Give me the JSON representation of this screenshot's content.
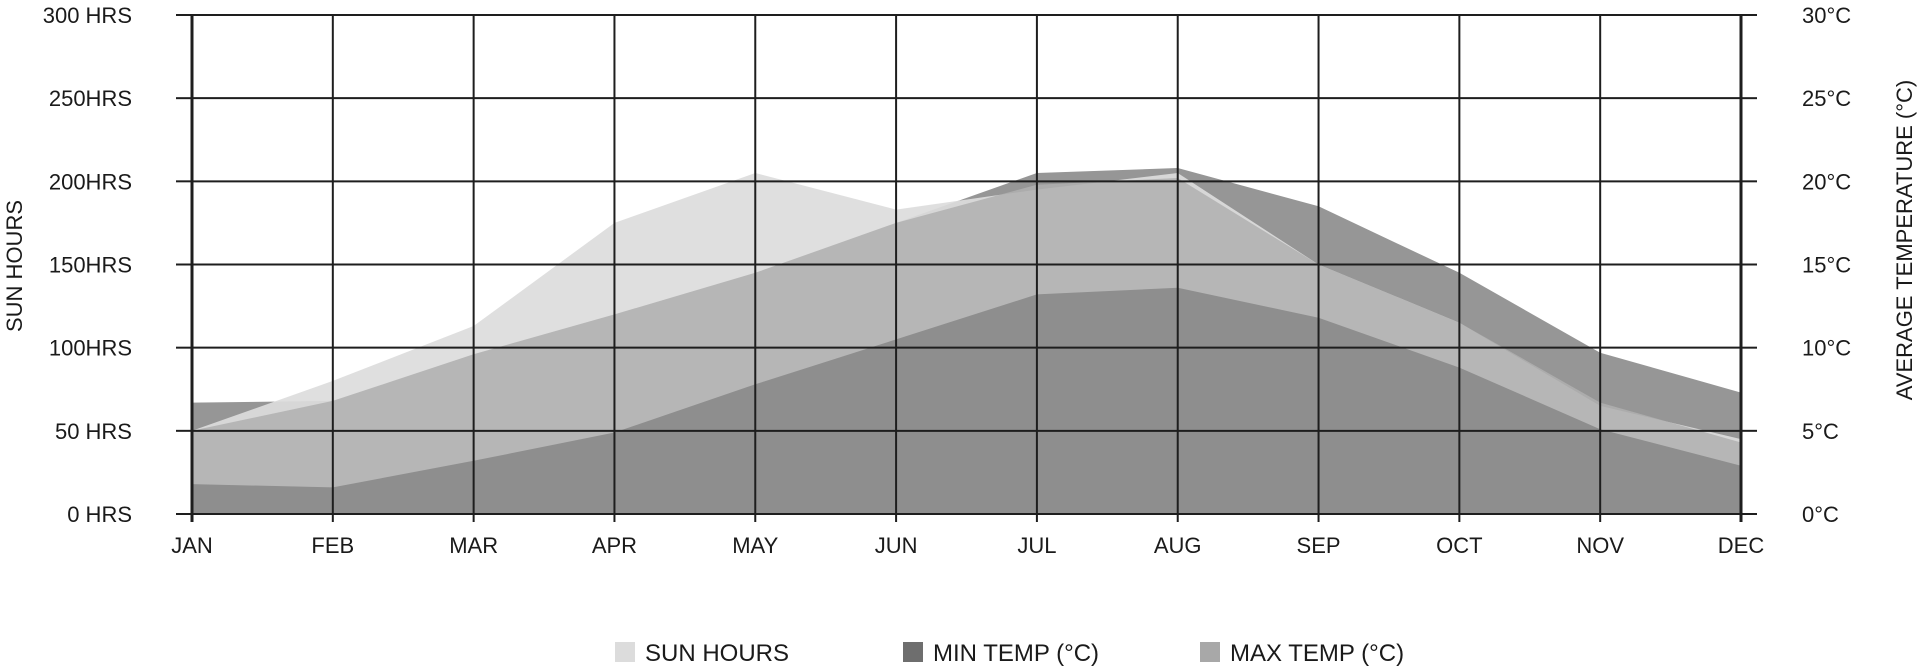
{
  "chart_data": {
    "type": "area",
    "categories": [
      "JAN",
      "FEB",
      "MAR",
      "APR",
      "MAY",
      "JUN",
      "JUL",
      "AUG",
      "SEP",
      "OCT",
      "NOV",
      "DEC"
    ],
    "series": [
      {
        "name": "SUN HOURS",
        "axis": "left",
        "color": "#dcdcdc",
        "values": [
          50,
          80,
          113,
          175,
          205,
          183,
          195,
          205,
          150,
          115,
          65,
          45
        ]
      },
      {
        "name": "MAX TEMP (°C)",
        "axis": "right",
        "color": "#b0b0b0",
        "values": [
          5,
          6.8,
          9.6,
          12,
          14.5,
          17.5,
          19.8,
          20.2,
          15,
          11.5,
          6.7,
          4.3
        ]
      },
      {
        "name": "MIN TEMP (°C)",
        "axis": "right",
        "color": "#8e8e8e",
        "values": [
          1.8,
          1.6,
          3.2,
          4.9,
          7.8,
          10.5,
          13.2,
          13.6,
          11.8,
          8.8,
          5.1,
          2.9
        ]
      }
    ],
    "top_band": {
      "color": "#969696",
      "values": [
        6.7,
        6.8,
        9.6,
        12,
        14.5,
        17.5,
        20.5,
        20.8,
        18.5,
        14.5,
        9.7,
        7.3
      ]
    },
    "left_axis": {
      "label": "SUN HOURS",
      "ylim": [
        0,
        300
      ],
      "ticks": [
        0,
        50,
        100,
        150,
        200,
        250,
        300
      ],
      "tick_labels": [
        "0 HRS",
        "50 HRS",
        "100HRS",
        "150HRS",
        "200HRS",
        "250HRS",
        "300 HRS"
      ]
    },
    "right_axis": {
      "label": "AVERAGE TEMPERATURE (°C)",
      "ylim": [
        0,
        30
      ],
      "ticks": [
        0,
        5,
        10,
        15,
        20,
        25,
        30
      ],
      "tick_labels": [
        "0°C",
        "5°C",
        "10°C",
        "15°C",
        "20°C",
        "25°C",
        "30°C"
      ]
    },
    "grid": true,
    "legend": {
      "position": "bottom",
      "items": [
        {
          "label": "SUN HOURS",
          "color": "#dcdcdc"
        },
        {
          "label": "MIN TEMP (°C)",
          "color": "#6e6e6e"
        },
        {
          "label": "MAX TEMP (°C)",
          "color": "#a8a8a8"
        }
      ]
    }
  }
}
